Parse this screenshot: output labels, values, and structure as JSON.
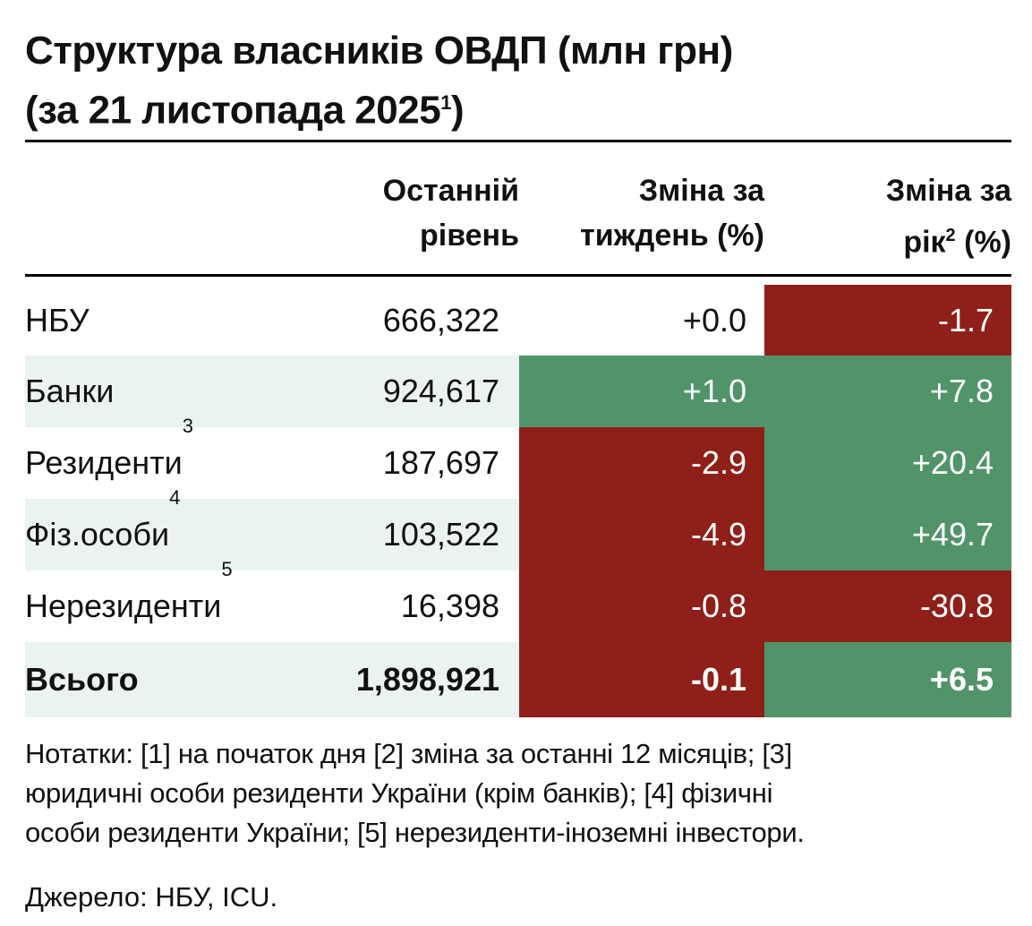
{
  "title": {
    "line1": "Структура власників ОВДП (млн грн)",
    "line2": "(за 21 листопада 2025",
    "line2_sup": "1",
    "line2_end": ")"
  },
  "headers": {
    "col1": [
      "Останній",
      "рівень"
    ],
    "col2": [
      "Зміна за",
      "тиждень (%)"
    ],
    "col3_line1": "Зміна за",
    "col3_line2a": "рік",
    "col3_sup": "2",
    "col3_line2b": " (%)"
  },
  "rows": [
    {
      "label": "НБУ",
      "sup": "",
      "level": "666,322",
      "week": "+0.0",
      "year": "-1.7"
    },
    {
      "label": "Банки",
      "sup": "",
      "level": "924,617",
      "week": "+1.0",
      "year": "+7.8"
    },
    {
      "label": "Резиденти",
      "sup": "3",
      "level": "187,697",
      "week": "-2.9",
      "year": "+20.4"
    },
    {
      "label": "Фіз.особи",
      "sup": "4",
      "level": "103,522",
      "week": "-4.9",
      "year": "+49.7"
    },
    {
      "label": "Нерезиденти",
      "sup": "5",
      "level": "16,398",
      "week": "-0.8",
      "year": "-30.8"
    },
    {
      "label": "Всього",
      "sup": "",
      "level": "1,898,921",
      "week": "-0.1",
      "year": "+6.5"
    }
  ],
  "colors": {
    "negative": "#8e2019",
    "positive": "#52946a",
    "alt_row": "#eaf3f2"
  },
  "notes": [
    "Нотатки: [1] на початок дня [2] зміна за останні 12 місяців; [3]",
    "юридичні особи  резиденти України (крім банків); [4] фізичні",
    "особи резиденти України; [5] нерезиденти-іноземні інвестори."
  ],
  "source": "Джерело: НБУ, ICU."
}
